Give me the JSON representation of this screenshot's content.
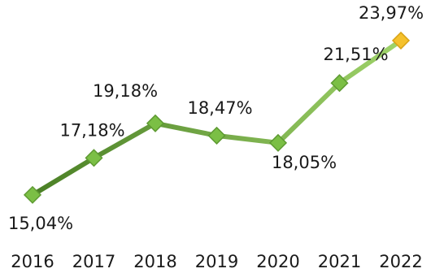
{
  "chart_data": {
    "type": "line",
    "title": "",
    "xlabel": "",
    "ylabel": "",
    "categories": [
      "2016",
      "2017",
      "2018",
      "2019",
      "2020",
      "2021",
      "2022"
    ],
    "series": [
      {
        "values": [
          15.04,
          17.18,
          19.18,
          18.47,
          18.05,
          21.51,
          23.97
        ],
        "labels": [
          "15,04%",
          "17,18%",
          "19,18%",
          "18,47%",
          "18,05%",
          "21,51%",
          "23,97%"
        ]
      }
    ],
    "ylim": [
      14,
      25
    ],
    "grid": false,
    "legend": "none",
    "colors": {
      "line_start": "#4a7f25",
      "line_end": "#9fd36a",
      "marker": "#7bbf45",
      "marker_edge": "#5e9a32",
      "highlight_marker": "#f5c12c",
      "highlight_edge": "#d9a316"
    }
  }
}
